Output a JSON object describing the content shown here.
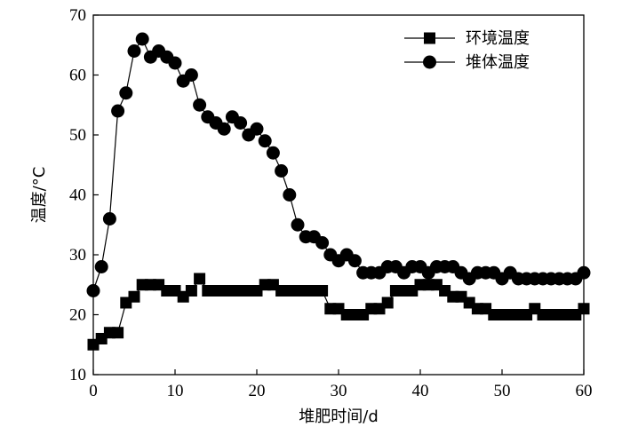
{
  "chart_data": {
    "type": "line",
    "xlabel": "堆肥时间/d",
    "ylabel": "温度/°C",
    "xlim": [
      0,
      60
    ],
    "ylim": [
      10,
      70
    ],
    "xticks": [
      0,
      10,
      20,
      30,
      40,
      50,
      60
    ],
    "yticks": [
      10,
      20,
      30,
      40,
      50,
      60,
      70
    ],
    "grid": false,
    "legend_position": "top-right",
    "series": [
      {
        "name": "环境温度",
        "marker": "square",
        "color": "#000000",
        "x": [
          0,
          1,
          2,
          3,
          4,
          5,
          6,
          7,
          8,
          9,
          10,
          11,
          12,
          13,
          14,
          15,
          16,
          17,
          18,
          19,
          20,
          21,
          22,
          23,
          24,
          25,
          26,
          27,
          28,
          29,
          30,
          31,
          32,
          33,
          34,
          35,
          36,
          37,
          38,
          39,
          40,
          41,
          42,
          43,
          44,
          45,
          46,
          47,
          48,
          49,
          50,
          51,
          52,
          53,
          54,
          55,
          56,
          57,
          58,
          59,
          60
        ],
        "values": [
          15,
          16,
          17,
          17,
          22,
          23,
          25,
          25,
          25,
          24,
          24,
          23,
          24,
          26,
          24,
          24,
          24,
          24,
          24,
          24,
          24,
          25,
          25,
          24,
          24,
          24,
          24,
          24,
          24,
          21,
          21,
          20,
          20,
          20,
          21,
          21,
          22,
          24,
          24,
          24,
          25,
          25,
          25,
          24,
          23,
          23,
          22,
          21,
          21,
          20,
          20,
          20,
          20,
          20,
          21,
          20,
          20,
          20,
          20,
          20,
          21
        ]
      },
      {
        "name": "堆体温度",
        "marker": "circle",
        "color": "#000000",
        "x": [
          0,
          1,
          2,
          3,
          4,
          5,
          6,
          7,
          8,
          9,
          10,
          11,
          12,
          13,
          14,
          15,
          16,
          17,
          18,
          19,
          20,
          21,
          22,
          23,
          24,
          25,
          26,
          27,
          28,
          29,
          30,
          31,
          32,
          33,
          34,
          35,
          36,
          37,
          38,
          39,
          40,
          41,
          42,
          43,
          44,
          45,
          46,
          47,
          48,
          49,
          50,
          51,
          52,
          53,
          54,
          55,
          56,
          57,
          58,
          59,
          60
        ],
        "values": [
          24,
          28,
          36,
          54,
          57,
          64,
          66,
          63,
          64,
          63,
          62,
          59,
          60,
          55,
          53,
          52,
          51,
          53,
          52,
          50,
          51,
          49,
          47,
          44,
          40,
          35,
          33,
          33,
          32,
          30,
          29,
          30,
          29,
          27,
          27,
          27,
          28,
          28,
          27,
          28,
          28,
          27,
          28,
          28,
          28,
          27,
          26,
          27,
          27,
          27,
          26,
          27,
          26,
          26,
          26,
          26,
          26,
          26,
          26,
          26,
          27
        ]
      }
    ]
  }
}
